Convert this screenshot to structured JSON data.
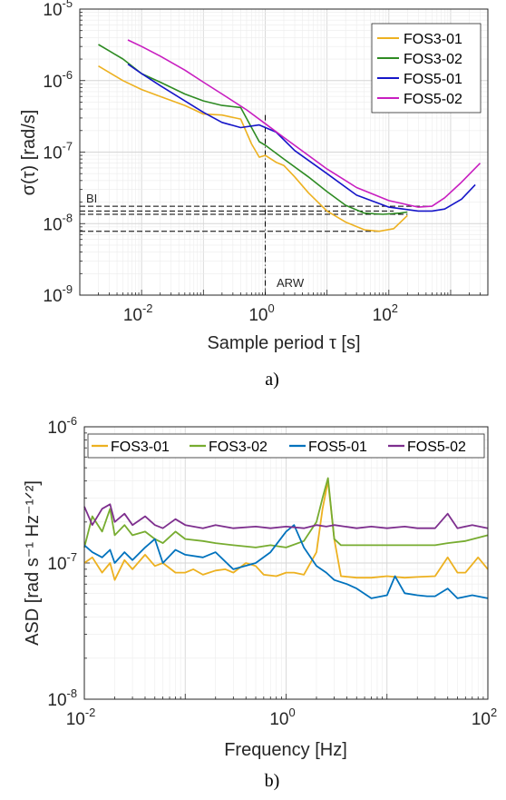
{
  "chart_data": [
    {
      "type": "line",
      "caption": "a)",
      "xlabel": "Sample period τ [s]",
      "ylabel": "σ(τ) [rad/s]",
      "xscale": "log",
      "yscale": "log",
      "xlim": [
        0.001,
        4000
      ],
      "ylim": [
        1e-09,
        1e-05
      ],
      "grid": true,
      "legend_position": "top-right",
      "x_ticks": [
        {
          "base": "10",
          "exp": "-2",
          "value": 0.01
        },
        {
          "base": "10",
          "exp": "0",
          "value": 1
        },
        {
          "base": "10",
          "exp": "2",
          "value": 100
        }
      ],
      "y_ticks": [
        {
          "base": "10",
          "exp": "-9",
          "value": 1e-09
        },
        {
          "base": "10",
          "exp": "-8",
          "value": 1e-08
        },
        {
          "base": "10",
          "exp": "-7",
          "value": 1e-07
        },
        {
          "base": "10",
          "exp": "-6",
          "value": 1e-06
        },
        {
          "base": "10",
          "exp": "-5",
          "value": 1e-05
        }
      ],
      "annotations": {
        "bi_label": "BI",
        "arw_label": "ARW",
        "arw_tau": 1,
        "bi_levels": [
          1.75e-08,
          1.5e-08,
          1.35e-08,
          7.8e-09
        ]
      },
      "series": [
        {
          "name": "FOS3-01",
          "color": "#EDB120",
          "x": [
            0.002,
            0.005,
            0.01,
            0.02,
            0.05,
            0.1,
            0.2,
            0.4,
            0.6,
            0.8,
            1,
            1.5,
            2,
            3,
            5,
            10,
            20,
            40,
            70,
            120,
            200
          ],
          "y": [
            1.6e-06,
            1e-06,
            7.5e-07,
            6e-07,
            4.5e-07,
            3.4e-07,
            3.3e-07,
            2.9e-07,
            1.3e-07,
            8.5e-08,
            9e-08,
            7.2e-08,
            6.5e-08,
            4.5e-08,
            2.7e-08,
            1.5e-08,
            1.05e-08,
            8.2e-09,
            7.8e-09,
            8.5e-09,
            1.3e-08
          ]
        },
        {
          "name": "FOS3-02",
          "color": "#2E8B23",
          "x": [
            0.002,
            0.003,
            0.005,
            0.01,
            0.02,
            0.05,
            0.1,
            0.2,
            0.4,
            0.6,
            0.8,
            1,
            2,
            5,
            10,
            20,
            40,
            80,
            150,
            200
          ],
          "y": [
            3.2e-06,
            2.6e-06,
            2e-06,
            1.25e-06,
            9.5e-07,
            6.5e-07,
            5.2e-07,
            4.5e-07,
            4.2e-07,
            2.2e-07,
            1.4e-07,
            1.25e-07,
            8e-08,
            4.5e-08,
            2.8e-08,
            1.8e-08,
            1.4e-08,
            1.35e-08,
            1.4e-08,
            1.45e-08
          ]
        },
        {
          "name": "FOS5-01",
          "color": "#1515C8",
          "x": [
            0.006,
            0.01,
            0.02,
            0.05,
            0.1,
            0.2,
            0.4,
            0.8,
            1.5,
            3,
            10,
            30,
            100,
            300,
            500,
            800,
            1500,
            2500
          ],
          "y": [
            1.7e-06,
            1.25e-06,
            8.5e-07,
            5.2e-07,
            3.6e-07,
            2.6e-07,
            2.2e-07,
            2.4e-07,
            1.9e-07,
            1.05e-07,
            5e-08,
            2.5e-08,
            1.7e-08,
            1.5e-08,
            1.5e-08,
            1.6e-08,
            2.2e-08,
            3.5e-08
          ]
        },
        {
          "name": "FOS5-02",
          "color": "#C81EC0",
          "x": [
            0.006,
            0.01,
            0.02,
            0.05,
            0.1,
            0.2,
            0.5,
            1,
            2,
            5,
            10,
            30,
            100,
            300,
            500,
            800,
            1500,
            3000
          ],
          "y": [
            3.7e-06,
            3e-06,
            2.2e-06,
            1.4e-06,
            9.5e-07,
            6.5e-07,
            3.9e-07,
            2.5e-07,
            1.6e-07,
            9e-08,
            5.8e-08,
            3.2e-08,
            2.1e-08,
            1.7e-08,
            1.75e-08,
            2.3e-08,
            3.8e-08,
            7e-08
          ]
        }
      ]
    },
    {
      "type": "line",
      "caption": "b)",
      "xlabel": "Frequency [Hz]",
      "ylabel": "ASD [rad s⁻¹ Hz⁻¹ᐟ²]",
      "xscale": "log",
      "yscale": "log",
      "xlim": [
        0.01,
        100
      ],
      "ylim": [
        1e-08,
        1e-06
      ],
      "grid": true,
      "legend_position": "top",
      "x_ticks": [
        {
          "base": "10",
          "exp": "-2",
          "value": 0.01
        },
        {
          "base": "10",
          "exp": "0",
          "value": 1
        },
        {
          "base": "10",
          "exp": "2",
          "value": 100
        }
      ],
      "y_ticks": [
        {
          "base": "10",
          "exp": "-8",
          "value": 1e-08
        },
        {
          "base": "10",
          "exp": "-7",
          "value": 1e-07
        },
        {
          "base": "10",
          "exp": "-6",
          "value": 1e-06
        }
      ],
      "series": [
        {
          "name": "FOS3-01",
          "color": "#EDB120",
          "x": [
            0.01,
            0.012,
            0.015,
            0.018,
            0.02,
            0.025,
            0.03,
            0.04,
            0.05,
            0.06,
            0.08,
            0.1,
            0.12,
            0.15,
            0.2,
            0.25,
            0.3,
            0.4,
            0.5,
            0.6,
            0.8,
            1.0,
            1.2,
            1.5,
            2.0,
            2.3,
            2.6,
            3.0,
            3.5,
            5,
            7,
            10,
            15,
            20,
            30,
            40,
            50,
            60,
            80,
            100
          ],
          "y": [
            1e-07,
            1.1e-07,
            8.5e-08,
            1e-07,
            7.5e-08,
            1.05e-07,
            9e-08,
            1.15e-07,
            9.5e-08,
            1e-07,
            8.5e-08,
            8.5e-08,
            9e-08,
            8.2e-08,
            8.8e-08,
            9e-08,
            8.5e-08,
            1e-07,
            9.5e-08,
            8.2e-08,
            8e-08,
            8.5e-08,
            8.5e-08,
            8.2e-08,
            1.2e-07,
            2.5e-07,
            4e-07,
            1.5e-07,
            8e-08,
            7.8e-08,
            7.8e-08,
            8e-08,
            7.8e-08,
            7.9e-08,
            8e-08,
            1.1e-07,
            8.5e-08,
            8.5e-08,
            1.1e-07,
            9e-08
          ]
        },
        {
          "name": "FOS3-02",
          "color": "#77AC30",
          "x": [
            0.01,
            0.012,
            0.015,
            0.018,
            0.02,
            0.025,
            0.03,
            0.04,
            0.05,
            0.06,
            0.08,
            0.1,
            0.15,
            0.2,
            0.3,
            0.5,
            0.7,
            1.0,
            1.5,
            2.0,
            2.3,
            2.6,
            3.0,
            3.5,
            5,
            7,
            10,
            15,
            20,
            30,
            40,
            60,
            100
          ],
          "y": [
            1.3e-07,
            2.2e-07,
            1.7e-07,
            2.5e-07,
            1.6e-07,
            1.9e-07,
            1.6e-07,
            1.7e-07,
            1.5e-07,
            1.4e-07,
            1.7e-07,
            1.5e-07,
            1.45e-07,
            1.4e-07,
            1.35e-07,
            1.3e-07,
            1.35e-07,
            1.3e-07,
            1.45e-07,
            2e-07,
            3e-07,
            4.2e-07,
            1.5e-07,
            1.35e-07,
            1.35e-07,
            1.35e-07,
            1.35e-07,
            1.35e-07,
            1.35e-07,
            1.35e-07,
            1.4e-07,
            1.45e-07,
            1.6e-07
          ]
        },
        {
          "name": "FOS5-01",
          "color": "#0072BD",
          "x": [
            0.01,
            0.012,
            0.015,
            0.018,
            0.02,
            0.025,
            0.03,
            0.04,
            0.05,
            0.06,
            0.08,
            0.1,
            0.15,
            0.2,
            0.3,
            0.5,
            0.7,
            1.0,
            1.2,
            1.5,
            2.0,
            2.5,
            3.0,
            4,
            5,
            7,
            10,
            12,
            15,
            20,
            25,
            30,
            40,
            50,
            70,
            100
          ],
          "y": [
            1.35e-07,
            1.2e-07,
            1.1e-07,
            1.25e-07,
            1e-07,
            1.2e-07,
            1.05e-07,
            1.3e-07,
            1.5e-07,
            1e-07,
            1.25e-07,
            1.15e-07,
            1.1e-07,
            1.2e-07,
            9e-08,
            1e-07,
            1.2e-07,
            1.7e-07,
            1.9e-07,
            1.3e-07,
            9.5e-08,
            8.5e-08,
            7.5e-08,
            7e-08,
            6.5e-08,
            5.5e-08,
            5.8e-08,
            8e-08,
            6e-08,
            5.8e-08,
            5.7e-08,
            5.7e-08,
            6.5e-08,
            5.5e-08,
            5.8e-08,
            5.5e-08
          ]
        },
        {
          "name": "FOS5-02",
          "color": "#7E2F8E",
          "x": [
            0.01,
            0.012,
            0.015,
            0.018,
            0.02,
            0.025,
            0.03,
            0.04,
            0.05,
            0.06,
            0.08,
            0.1,
            0.15,
            0.2,
            0.3,
            0.5,
            0.7,
            1.0,
            1.5,
            2.0,
            2.5,
            3.0,
            5,
            7,
            10,
            15,
            20,
            30,
            40,
            50,
            70,
            100
          ],
          "y": [
            2.6e-07,
            1.9e-07,
            2.5e-07,
            2.7e-07,
            2e-07,
            2.3e-07,
            1.9e-07,
            2.2e-07,
            1.9e-07,
            1.8e-07,
            2.1e-07,
            1.9e-07,
            1.8e-07,
            1.9e-07,
            1.8e-07,
            1.85e-07,
            1.8e-07,
            1.85e-07,
            1.8e-07,
            1.9e-07,
            1.85e-07,
            1.9e-07,
            1.8e-07,
            1.85e-07,
            1.8e-07,
            1.85e-07,
            1.8e-07,
            1.8e-07,
            2.3e-07,
            1.8e-07,
            1.9e-07,
            1.8e-07
          ]
        }
      ]
    }
  ]
}
